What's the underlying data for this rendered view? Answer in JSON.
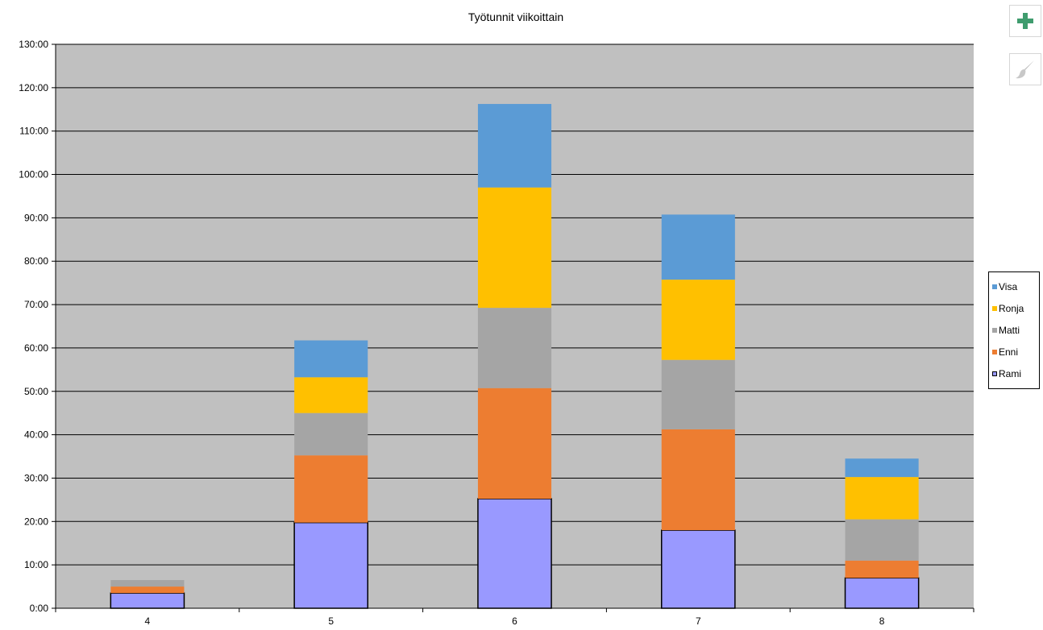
{
  "chart_data": {
    "type": "bar",
    "stacked": true,
    "title": "Työtunnit viikoittain",
    "xlabel": "",
    "ylabel": "",
    "categories": [
      "4",
      "5",
      "6",
      "7",
      "8"
    ],
    "y_tick_labels": [
      "0:00",
      "10:00",
      "20:00",
      "30:00",
      "40:00",
      "50:00",
      "60:00",
      "70:00",
      "80:00",
      "90:00",
      "100:00",
      "110:00",
      "120:00",
      "130:00"
    ],
    "ylim": [
      0,
      130
    ],
    "y_unit": "hours",
    "grid": true,
    "plot_background": "#c0c0c0",
    "legend_position": "right",
    "series": [
      {
        "name": "Rami",
        "color": "#9999ff",
        "outlined": true,
        "values": [
          3.5,
          19.75,
          25.25,
          18.0,
          7.0
        ]
      },
      {
        "name": "Enni",
        "color": "#ed7d31",
        "values": [
          1.5,
          15.5,
          25.5,
          23.25,
          4.0
        ]
      },
      {
        "name": "Matti",
        "color": "#a5a5a5",
        "values": [
          1.5,
          9.75,
          18.5,
          16.0,
          9.5
        ]
      },
      {
        "name": "Ronja",
        "color": "#ffc000",
        "values": [
          0,
          8.25,
          27.75,
          18.5,
          9.75
        ]
      },
      {
        "name": "Visa",
        "color": "#5b9bd5",
        "values": [
          0,
          8.5,
          19.25,
          15.0,
          4.25
        ]
      }
    ]
  },
  "side_buttons": {
    "elements_icon": "plus-icon",
    "styles_icon": "paintbrush-icon",
    "elements_color": "#3f9c6e"
  }
}
